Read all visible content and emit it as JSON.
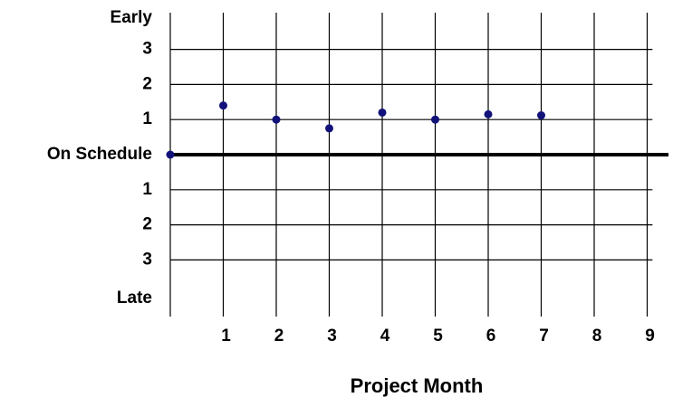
{
  "chart_data": {
    "type": "scatter",
    "title": "",
    "xlabel": "Project Month",
    "ylabel": "",
    "x_ticks": [
      "1",
      "2",
      "3",
      "4",
      "5",
      "6",
      "7",
      "8",
      "9"
    ],
    "y_tick_labels": [
      {
        "value": 4,
        "label": "Early"
      },
      {
        "value": 3,
        "label": "3"
      },
      {
        "value": 2,
        "label": "2"
      },
      {
        "value": 1,
        "label": "1"
      },
      {
        "value": 0,
        "label": "On Schedule"
      },
      {
        "value": -1,
        "label": "1"
      },
      {
        "value": -2,
        "label": "2"
      },
      {
        "value": -3,
        "label": "3"
      },
      {
        "value": -4,
        "label": "Late"
      }
    ],
    "xlim": [
      0,
      9.1
    ],
    "ylim": [
      -4.5,
      4.2
    ],
    "grid": true,
    "points": [
      {
        "x": 0,
        "y": 0
      },
      {
        "x": 1,
        "y": 1.4
      },
      {
        "x": 2,
        "y": 1.0
      },
      {
        "x": 3,
        "y": 0.75
      },
      {
        "x": 4,
        "y": 1.2
      },
      {
        "x": 5,
        "y": 1.0
      },
      {
        "x": 6,
        "y": 1.15
      },
      {
        "x": 7,
        "y": 1.12
      }
    ],
    "colors": {
      "points": "#12127a",
      "grid": "#000000",
      "baseline": "#000000"
    }
  }
}
